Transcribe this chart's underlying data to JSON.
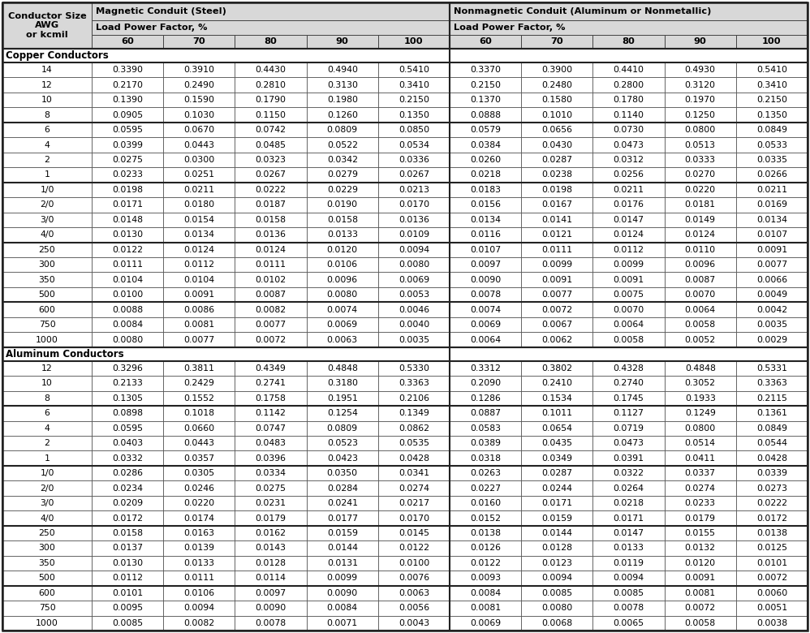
{
  "copper_groups": [
    {
      "rows": [
        [
          "14",
          "0.3390",
          "0.3910",
          "0.4430",
          "0.4940",
          "0.5410",
          "0.3370",
          "0.3900",
          "0.4410",
          "0.4930",
          "0.5410"
        ],
        [
          "12",
          "0.2170",
          "0.2490",
          "0.2810",
          "0.3130",
          "0.3410",
          "0.2150",
          "0.2480",
          "0.2800",
          "0.3120",
          "0.3410"
        ],
        [
          "10",
          "0.1390",
          "0.1590",
          "0.1790",
          "0.1980",
          "0.2150",
          "0.1370",
          "0.1580",
          "0.1780",
          "0.1970",
          "0.2150"
        ],
        [
          "8",
          "0.0905",
          "0.1030",
          "0.1150",
          "0.1260",
          "0.1350",
          "0.0888",
          "0.1010",
          "0.1140",
          "0.1250",
          "0.1350"
        ]
      ]
    },
    {
      "rows": [
        [
          "6",
          "0.0595",
          "0.0670",
          "0.0742",
          "0.0809",
          "0.0850",
          "0.0579",
          "0.0656",
          "0.0730",
          "0.0800",
          "0.0849"
        ],
        [
          "4",
          "0.0399",
          "0.0443",
          "0.0485",
          "0.0522",
          "0.0534",
          "0.0384",
          "0.0430",
          "0.0473",
          "0.0513",
          "0.0533"
        ],
        [
          "2",
          "0.0275",
          "0.0300",
          "0.0323",
          "0.0342",
          "0.0336",
          "0.0260",
          "0.0287",
          "0.0312",
          "0.0333",
          "0.0335"
        ],
        [
          "1",
          "0.0233",
          "0.0251",
          "0.0267",
          "0.0279",
          "0.0267",
          "0.0218",
          "0.0238",
          "0.0256",
          "0.0270",
          "0.0266"
        ]
      ]
    },
    {
      "rows": [
        [
          "1/0",
          "0.0198",
          "0.0211",
          "0.0222",
          "0.0229",
          "0.0213",
          "0.0183",
          "0.0198",
          "0.0211",
          "0.0220",
          "0.0211"
        ],
        [
          "2/0",
          "0.0171",
          "0.0180",
          "0.0187",
          "0.0190",
          "0.0170",
          "0.0156",
          "0.0167",
          "0.0176",
          "0.0181",
          "0.0169"
        ],
        [
          "3/0",
          "0.0148",
          "0.0154",
          "0.0158",
          "0.0158",
          "0.0136",
          "0.0134",
          "0.0141",
          "0.0147",
          "0.0149",
          "0.0134"
        ],
        [
          "4/0",
          "0.0130",
          "0.0134",
          "0.0136",
          "0.0133",
          "0.0109",
          "0.0116",
          "0.0121",
          "0.0124",
          "0.0124",
          "0.0107"
        ]
      ]
    },
    {
      "rows": [
        [
          "250",
          "0.0122",
          "0.0124",
          "0.0124",
          "0.0120",
          "0.0094",
          "0.0107",
          "0.0111",
          "0.0112",
          "0.0110",
          "0.0091"
        ],
        [
          "300",
          "0.0111",
          "0.0112",
          "0.0111",
          "0.0106",
          "0.0080",
          "0.0097",
          "0.0099",
          "0.0099",
          "0.0096",
          "0.0077"
        ],
        [
          "350",
          "0.0104",
          "0.0104",
          "0.0102",
          "0.0096",
          "0.0069",
          "0.0090",
          "0.0091",
          "0.0091",
          "0.0087",
          "0.0066"
        ],
        [
          "500",
          "0.0100",
          "0.0091",
          "0.0087",
          "0.0080",
          "0.0053",
          "0.0078",
          "0.0077",
          "0.0075",
          "0.0070",
          "0.0049"
        ]
      ]
    },
    {
      "rows": [
        [
          "600",
          "0.0088",
          "0.0086",
          "0.0082",
          "0.0074",
          "0.0046",
          "0.0074",
          "0.0072",
          "0.0070",
          "0.0064",
          "0.0042"
        ],
        [
          "750",
          "0.0084",
          "0.0081",
          "0.0077",
          "0.0069",
          "0.0040",
          "0.0069",
          "0.0067",
          "0.0064",
          "0.0058",
          "0.0035"
        ],
        [
          "1000",
          "0.0080",
          "0.0077",
          "0.0072",
          "0.0063",
          "0.0035",
          "0.0064",
          "0.0062",
          "0.0058",
          "0.0052",
          "0.0029"
        ]
      ]
    }
  ],
  "aluminum_groups": [
    {
      "rows": [
        [
          "12",
          "0.3296",
          "0.3811",
          "0.4349",
          "0.4848",
          "0.5330",
          "0.3312",
          "0.3802",
          "0.4328",
          "0.4848",
          "0.5331"
        ],
        [
          "10",
          "0.2133",
          "0.2429",
          "0.2741",
          "0.3180",
          "0.3363",
          "0.2090",
          "0.2410",
          "0.2740",
          "0.3052",
          "0.3363"
        ],
        [
          "8",
          "0.1305",
          "0.1552",
          "0.1758",
          "0.1951",
          "0.2106",
          "0.1286",
          "0.1534",
          "0.1745",
          "0.1933",
          "0.2115"
        ]
      ]
    },
    {
      "rows": [
        [
          "6",
          "0.0898",
          "0.1018",
          "0.1142",
          "0.1254",
          "0.1349",
          "0.0887",
          "0.1011",
          "0.1127",
          "0.1249",
          "0.1361"
        ],
        [
          "4",
          "0.0595",
          "0.0660",
          "0.0747",
          "0.0809",
          "0.0862",
          "0.0583",
          "0.0654",
          "0.0719",
          "0.0800",
          "0.0849"
        ],
        [
          "2",
          "0.0403",
          "0.0443",
          "0.0483",
          "0.0523",
          "0.0535",
          "0.0389",
          "0.0435",
          "0.0473",
          "0.0514",
          "0.0544"
        ],
        [
          "1",
          "0.0332",
          "0.0357",
          "0.0396",
          "0.0423",
          "0.0428",
          "0.0318",
          "0.0349",
          "0.0391",
          "0.0411",
          "0.0428"
        ]
      ]
    },
    {
      "rows": [
        [
          "1/0",
          "0.0286",
          "0.0305",
          "0.0334",
          "0.0350",
          "0.0341",
          "0.0263",
          "0.0287",
          "0.0322",
          "0.0337",
          "0.0339"
        ],
        [
          "2/0",
          "0.0234",
          "0.0246",
          "0.0275",
          "0.0284",
          "0.0274",
          "0.0227",
          "0.0244",
          "0.0264",
          "0.0274",
          "0.0273"
        ],
        [
          "3/0",
          "0.0209",
          "0.0220",
          "0.0231",
          "0.0241",
          "0.0217",
          "0.0160",
          "0.0171",
          "0.0218",
          "0.0233",
          "0.0222"
        ],
        [
          "4/0",
          "0.0172",
          "0.0174",
          "0.0179",
          "0.0177",
          "0.0170",
          "0.0152",
          "0.0159",
          "0.0171",
          "0.0179",
          "0.0172"
        ]
      ]
    },
    {
      "rows": [
        [
          "250",
          "0.0158",
          "0.0163",
          "0.0162",
          "0.0159",
          "0.0145",
          "0.0138",
          "0.0144",
          "0.0147",
          "0.0155",
          "0.0138"
        ],
        [
          "300",
          "0.0137",
          "0.0139",
          "0.0143",
          "0.0144",
          "0.0122",
          "0.0126",
          "0.0128",
          "0.0133",
          "0.0132",
          "0.0125"
        ],
        [
          "350",
          "0.0130",
          "0.0133",
          "0.0128",
          "0.0131",
          "0.0100",
          "0.0122",
          "0.0123",
          "0.0119",
          "0.0120",
          "0.0101"
        ],
        [
          "500",
          "0.0112",
          "0.0111",
          "0.0114",
          "0.0099",
          "0.0076",
          "0.0093",
          "0.0094",
          "0.0094",
          "0.0091",
          "0.0072"
        ]
      ]
    },
    {
      "rows": [
        [
          "600",
          "0.0101",
          "0.0106",
          "0.0097",
          "0.0090",
          "0.0063",
          "0.0084",
          "0.0085",
          "0.0085",
          "0.0081",
          "0.0060"
        ],
        [
          "750",
          "0.0095",
          "0.0094",
          "0.0090",
          "0.0084",
          "0.0056",
          "0.0081",
          "0.0080",
          "0.0078",
          "0.0072",
          "0.0051"
        ],
        [
          "1000",
          "0.0085",
          "0.0082",
          "0.0078",
          "0.0071",
          "0.0043",
          "0.0069",
          "0.0068",
          "0.0065",
          "0.0058",
          "0.0038"
        ]
      ]
    }
  ],
  "bg_color": "#ffffff",
  "header_bg": "#d8d8d8",
  "border_color": "#444444",
  "thick_border": "#222222",
  "text_color": "#000000",
  "font_size": 7.8,
  "header_font_size": 8.2,
  "section_font_size": 8.5
}
